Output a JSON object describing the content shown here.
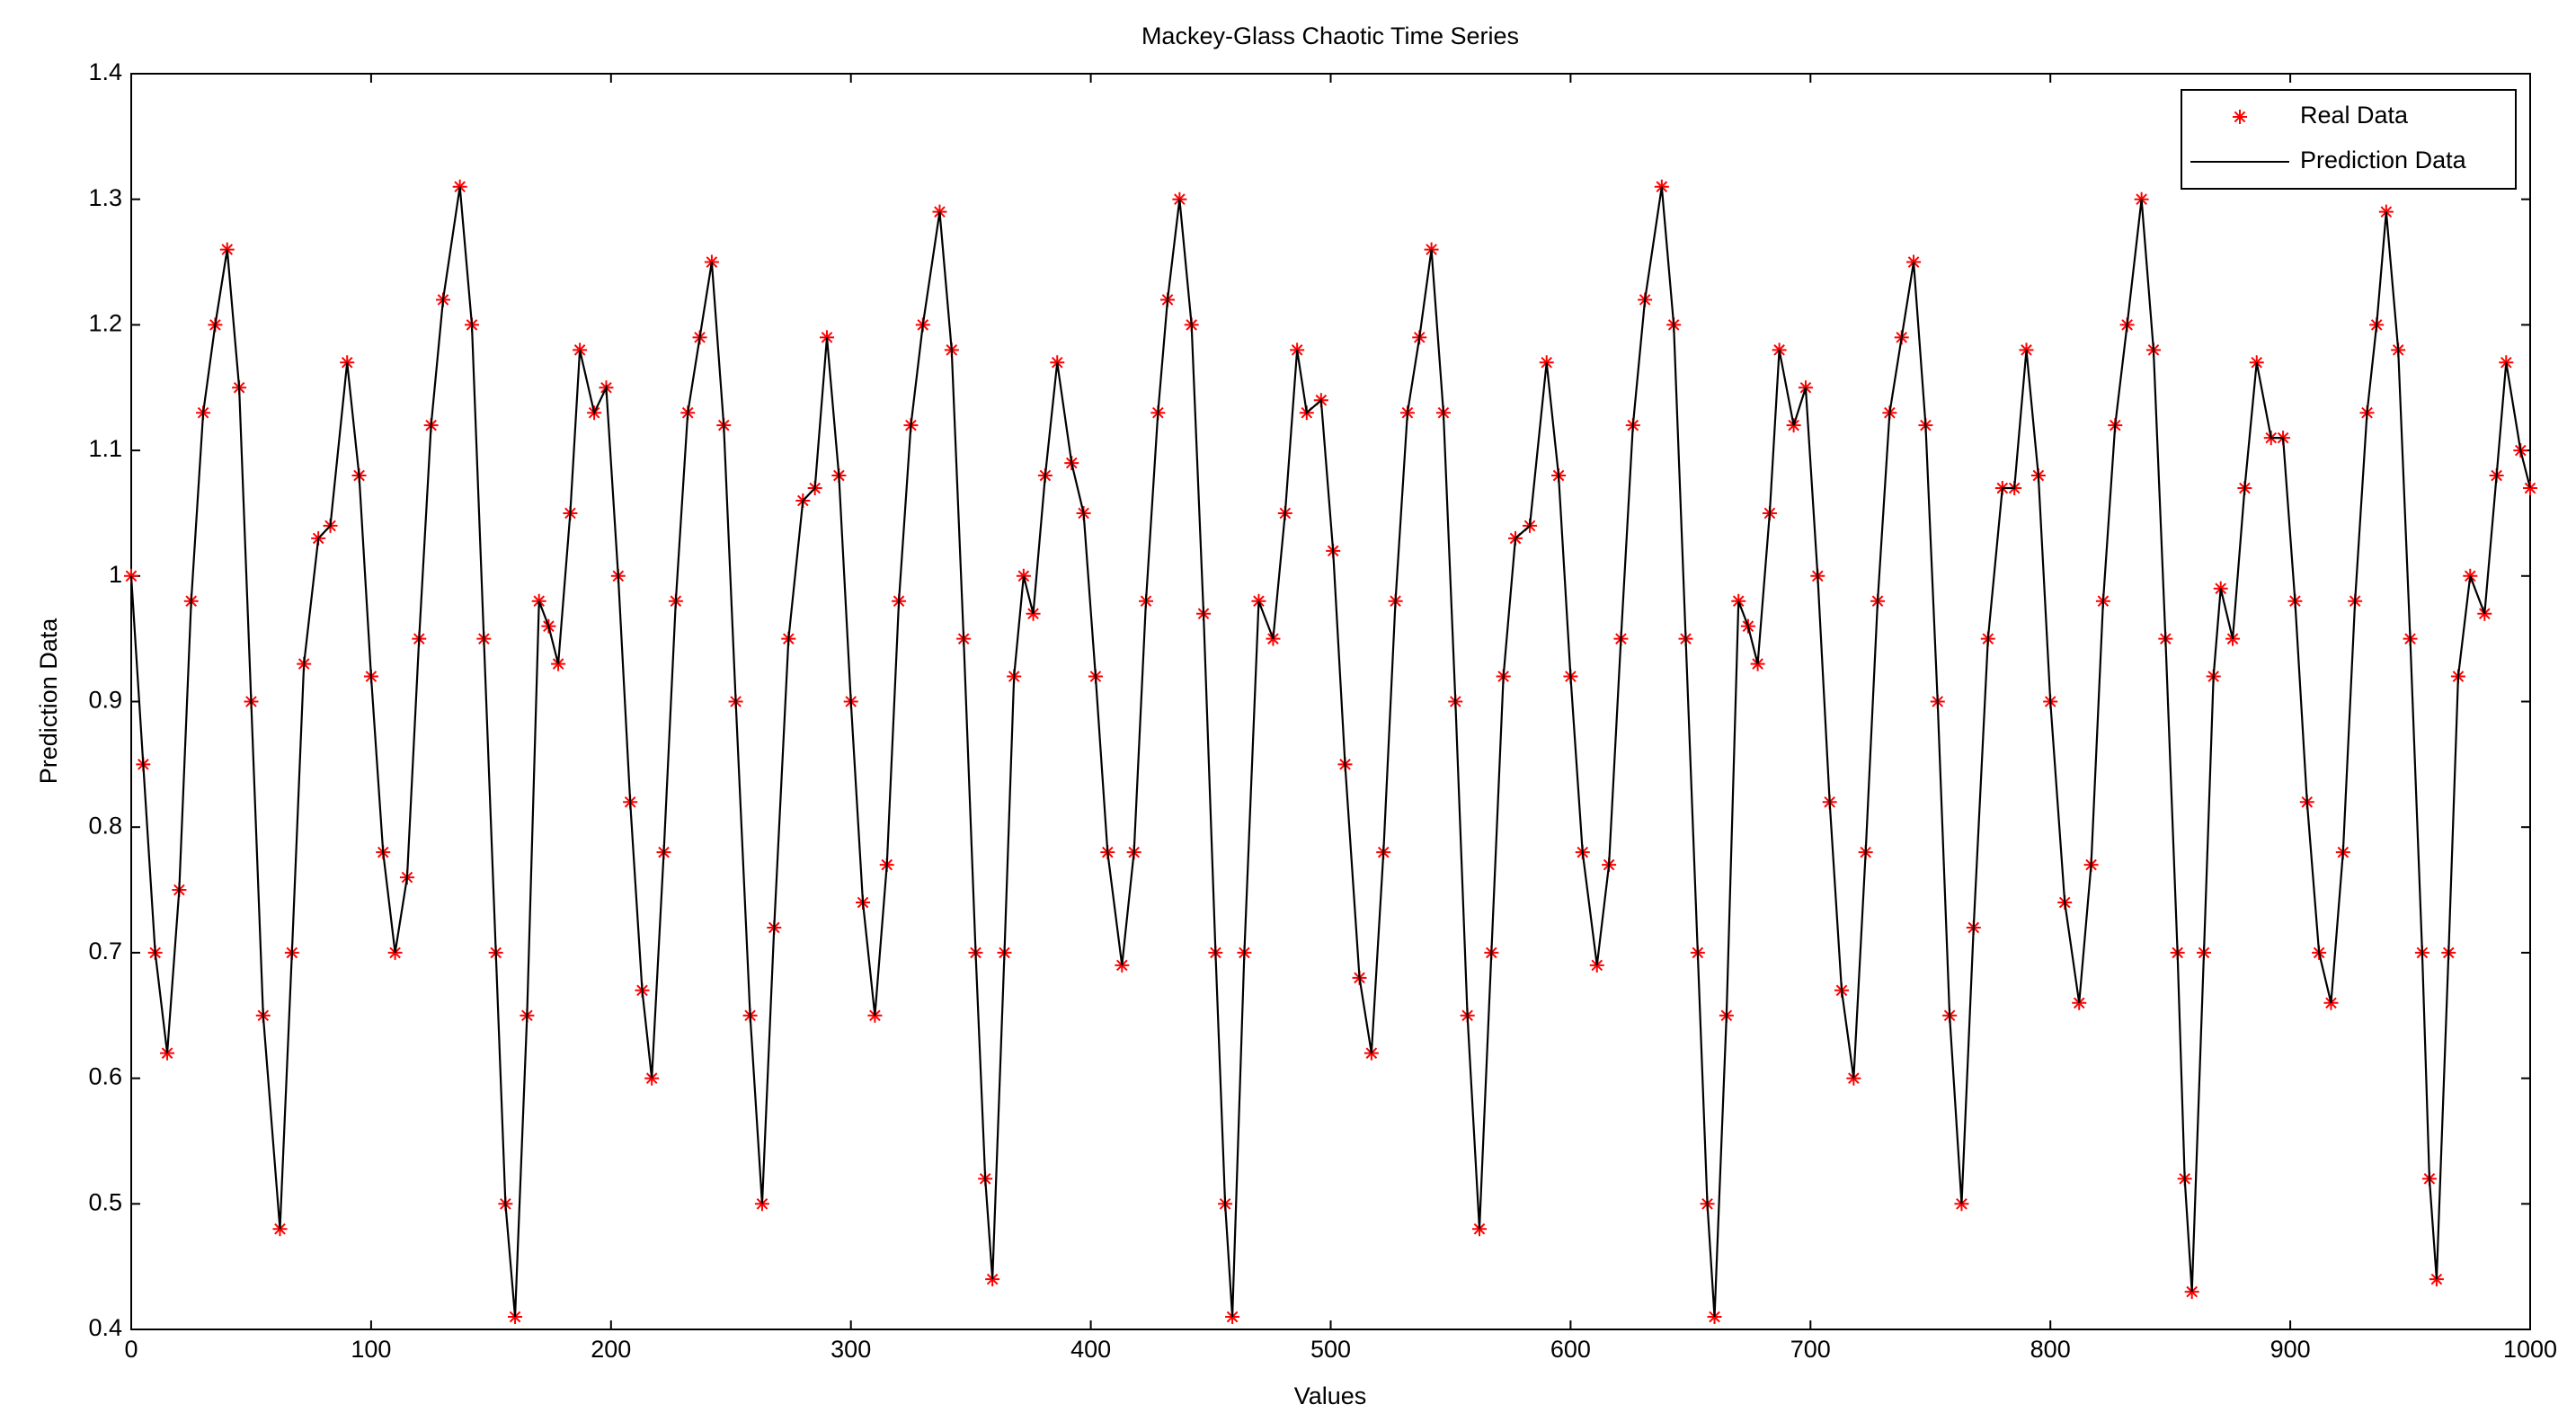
{
  "chart_data": {
    "type": "line-scatter",
    "title": "Mackey-Glass Chaotic Time Series",
    "xlabel": "Values",
    "ylabel": "Prediction Data",
    "xlim": [
      0,
      1000
    ],
    "xticks": [
      0,
      100,
      200,
      300,
      400,
      500,
      600,
      700,
      800,
      900,
      1000
    ],
    "ylim": [
      0.4,
      1.4
    ],
    "yticks": [
      0.4,
      0.5,
      0.6,
      0.7,
      0.8,
      0.9,
      1,
      1.1,
      1.2,
      1.3,
      1.4
    ],
    "legend_loc": "upper right",
    "x": [
      0,
      5,
      10,
      15,
      20,
      25,
      30,
      35,
      40,
      45,
      50,
      55,
      62,
      67,
      72,
      78,
      83,
      90,
      95,
      100,
      105,
      110,
      115,
      120,
      125,
      130,
      137,
      142,
      147,
      152,
      156,
      160,
      165,
      170,
      174,
      178,
      183,
      187,
      193,
      198,
      203,
      208,
      213,
      217,
      222,
      227,
      232,
      237,
      242,
      247,
      252,
      258,
      263,
      268,
      274,
      280,
      285,
      290,
      295,
      300,
      305,
      310,
      315,
      320,
      325,
      330,
      337,
      342,
      347,
      352,
      356,
      359,
      364,
      368,
      372,
      376,
      381,
      386,
      392,
      397,
      402,
      407,
      413,
      418,
      423,
      428,
      432,
      437,
      442,
      447,
      452,
      456,
      459,
      464,
      470,
      476,
      481,
      486,
      490,
      496,
      501,
      506,
      512,
      517,
      522,
      527,
      532,
      537,
      542,
      547,
      552,
      557,
      562,
      567,
      572,
      577,
      583,
      590,
      595,
      600,
      605,
      611,
      616,
      621,
      626,
      631,
      638,
      643,
      648,
      653,
      657,
      660,
      665,
      670,
      674,
      678,
      683,
      687,
      693,
      698,
      703,
      708,
      713,
      718,
      723,
      728,
      733,
      738,
      743,
      748,
      753,
      758,
      763,
      768,
      774,
      780,
      785,
      790,
      795,
      800,
      806,
      812,
      817,
      822,
      827,
      832,
      838,
      843,
      848,
      853,
      856,
      859,
      864,
      868,
      871,
      876,
      881,
      886,
      892,
      897,
      902,
      907,
      912,
      917,
      922,
      927,
      932,
      936,
      940,
      945,
      950,
      955,
      958,
      961,
      966,
      970,
      975,
      981,
      986,
      990,
      996,
      1000
    ],
    "series": [
      {
        "name": "Real Data",
        "color": "#ff0000",
        "marker": "*",
        "line": false,
        "values": [
          1.0,
          0.85,
          0.7,
          0.62,
          0.75,
          0.98,
          1.13,
          1.2,
          1.26,
          1.15,
          0.9,
          0.65,
          0.48,
          0.7,
          0.93,
          1.03,
          1.04,
          1.17,
          1.08,
          0.92,
          0.78,
          0.7,
          0.76,
          0.95,
          1.12,
          1.22,
          1.31,
          1.2,
          0.95,
          0.7,
          0.5,
          0.41,
          0.65,
          0.98,
          0.96,
          0.93,
          1.05,
          1.18,
          1.13,
          1.15,
          1.0,
          0.82,
          0.67,
          0.6,
          0.78,
          0.98,
          1.13,
          1.19,
          1.25,
          1.12,
          0.9,
          0.65,
          0.5,
          0.72,
          0.95,
          1.06,
          1.07,
          1.19,
          1.08,
          0.9,
          0.74,
          0.65,
          0.77,
          0.98,
          1.12,
          1.2,
          1.29,
          1.18,
          0.95,
          0.7,
          0.52,
          0.44,
          0.7,
          0.92,
          1.0,
          0.97,
          1.08,
          1.17,
          1.09,
          1.05,
          0.92,
          0.78,
          0.69,
          0.78,
          0.98,
          1.13,
          1.22,
          1.3,
          1.2,
          0.97,
          0.7,
          0.5,
          0.41,
          0.7,
          0.98,
          0.95,
          1.05,
          1.18,
          1.13,
          1.14,
          1.02,
          0.85,
          0.68,
          0.62,
          0.78,
          0.98,
          1.13,
          1.19,
          1.26,
          1.13,
          0.9,
          0.65,
          0.48,
          0.7,
          0.92,
          1.03,
          1.04,
          1.17,
          1.08,
          0.92,
          0.78,
          0.69,
          0.77,
          0.95,
          1.12,
          1.22,
          1.31,
          1.2,
          0.95,
          0.7,
          0.5,
          0.41,
          0.65,
          0.98,
          0.96,
          0.93,
          1.05,
          1.18,
          1.12,
          1.15,
          1.0,
          0.82,
          0.67,
          0.6,
          0.78,
          0.98,
          1.13,
          1.19,
          1.25,
          1.12,
          0.9,
          0.65,
          0.5,
          0.72,
          0.95,
          1.07,
          1.07,
          1.18,
          1.08,
          0.9,
          0.74,
          0.66,
          0.77,
          0.98,
          1.12,
          1.2,
          1.3,
          1.18,
          0.95,
          0.7,
          0.52,
          0.43,
          0.7,
          0.92,
          0.99,
          0.95,
          1.07,
          1.17,
          1.11,
          1.11,
          0.98,
          0.82,
          0.7,
          0.66,
          0.78,
          0.98,
          1.13,
          1.2,
          1.29,
          1.18,
          0.95,
          0.7,
          0.52,
          0.44,
          0.7,
          0.92,
          1.0,
          0.97,
          1.08,
          1.17,
          1.1,
          1.07
        ]
      },
      {
        "name": "Prediction Data",
        "color": "#000000",
        "line": true,
        "values": [
          1.0,
          0.85,
          0.7,
          0.62,
          0.75,
          0.98,
          1.13,
          1.2,
          1.26,
          1.15,
          0.9,
          0.65,
          0.48,
          0.7,
          0.93,
          1.03,
          1.04,
          1.17,
          1.08,
          0.92,
          0.78,
          0.7,
          0.76,
          0.95,
          1.12,
          1.22,
          1.31,
          1.2,
          0.95,
          0.7,
          0.5,
          0.41,
          0.65,
          0.98,
          0.96,
          0.93,
          1.05,
          1.18,
          1.13,
          1.15,
          1.0,
          0.82,
          0.67,
          0.6,
          0.78,
          0.98,
          1.13,
          1.19,
          1.25,
          1.12,
          0.9,
          0.65,
          0.5,
          0.72,
          0.95,
          1.06,
          1.07,
          1.19,
          1.08,
          0.9,
          0.74,
          0.65,
          0.77,
          0.98,
          1.12,
          1.2,
          1.29,
          1.18,
          0.95,
          0.7,
          0.52,
          0.44,
          0.7,
          0.92,
          1.0,
          0.97,
          1.08,
          1.17,
          1.09,
          1.05,
          0.92,
          0.78,
          0.69,
          0.78,
          0.98,
          1.13,
          1.22,
          1.3,
          1.2,
          0.97,
          0.7,
          0.5,
          0.41,
          0.7,
          0.98,
          0.95,
          1.05,
          1.18,
          1.13,
          1.14,
          1.02,
          0.85,
          0.68,
          0.62,
          0.78,
          0.98,
          1.13,
          1.19,
          1.26,
          1.13,
          0.9,
          0.65,
          0.48,
          0.7,
          0.92,
          1.03,
          1.04,
          1.17,
          1.08,
          0.92,
          0.78,
          0.69,
          0.77,
          0.95,
          1.12,
          1.22,
          1.31,
          1.2,
          0.95,
          0.7,
          0.5,
          0.41,
          0.65,
          0.98,
          0.96,
          0.93,
          1.05,
          1.18,
          1.12,
          1.15,
          1.0,
          0.82,
          0.67,
          0.6,
          0.78,
          0.98,
          1.13,
          1.19,
          1.25,
          1.12,
          0.9,
          0.65,
          0.5,
          0.72,
          0.95,
          1.07,
          1.07,
          1.18,
          1.08,
          0.9,
          0.74,
          0.66,
          0.77,
          0.98,
          1.12,
          1.2,
          1.3,
          1.18,
          0.95,
          0.7,
          0.52,
          0.43,
          0.7,
          0.92,
          0.99,
          0.95,
          1.07,
          1.17,
          1.11,
          1.11,
          0.98,
          0.82,
          0.7,
          0.66,
          0.78,
          0.98,
          1.13,
          1.2,
          1.29,
          1.18,
          0.95,
          0.7,
          0.52,
          0.44,
          0.7,
          0.92,
          1.0,
          0.97,
          1.08,
          1.17,
          1.1,
          1.07
        ]
      }
    ]
  }
}
